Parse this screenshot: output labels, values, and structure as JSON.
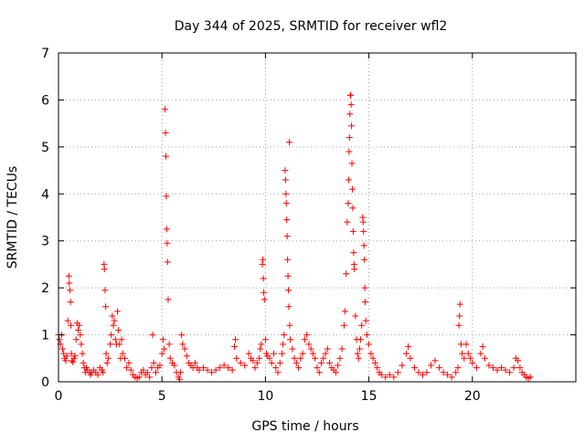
{
  "chart_data": {
    "type": "scatter",
    "title": "Day 344 of 2025, SRMTID for receiver wfl2",
    "xlabel": "GPS time / hours",
    "ylabel": "SRMTID / TECUs",
    "xlim": [
      0,
      25
    ],
    "ylim": [
      0,
      7
    ],
    "xticks": [
      0,
      5,
      10,
      15,
      20
    ],
    "yticks": [
      0,
      1,
      2,
      3,
      4,
      5,
      6,
      7
    ],
    "grid": true,
    "marker": "+",
    "color": "#ff0000",
    "series": [
      {
        "name": "SRMTID",
        "points": [
          [
            0.0,
            1.0
          ],
          [
            0.05,
            0.9
          ],
          [
            0.1,
            0.8
          ],
          [
            0.15,
            1.0
          ],
          [
            0.2,
            0.7
          ],
          [
            0.25,
            0.6
          ],
          [
            0.3,
            0.5
          ],
          [
            0.35,
            0.45
          ],
          [
            0.4,
            0.55
          ],
          [
            0.45,
            1.3
          ],
          [
            0.5,
            2.25
          ],
          [
            0.52,
            2.1
          ],
          [
            0.55,
            1.95
          ],
          [
            0.58,
            1.7
          ],
          [
            0.6,
            1.2
          ],
          [
            0.62,
            0.6
          ],
          [
            0.65,
            0.45
          ],
          [
            0.7,
            0.42
          ],
          [
            0.75,
            0.5
          ],
          [
            0.8,
            0.55
          ],
          [
            0.85,
            0.9
          ],
          [
            0.9,
            1.25
          ],
          [
            0.95,
            1.1
          ],
          [
            1.0,
            1.2
          ],
          [
            1.05,
            1.0
          ],
          [
            1.1,
            0.8
          ],
          [
            1.15,
            0.6
          ],
          [
            1.2,
            0.4
          ],
          [
            1.25,
            0.3
          ],
          [
            1.3,
            0.2
          ],
          [
            1.35,
            0.3
          ],
          [
            1.4,
            0.25
          ],
          [
            1.5,
            0.2
          ],
          [
            1.55,
            0.15
          ],
          [
            1.6,
            0.2
          ],
          [
            1.7,
            0.25
          ],
          [
            1.8,
            0.2
          ],
          [
            1.9,
            0.15
          ],
          [
            2.0,
            0.3
          ],
          [
            2.1,
            0.25
          ],
          [
            2.15,
            0.2
          ],
          [
            2.2,
            2.5
          ],
          [
            2.22,
            2.4
          ],
          [
            2.25,
            1.95
          ],
          [
            2.28,
            1.6
          ],
          [
            2.3,
            0.6
          ],
          [
            2.35,
            0.4
          ],
          [
            2.4,
            0.5
          ],
          [
            2.5,
            0.8
          ],
          [
            2.55,
            1.0
          ],
          [
            2.6,
            1.4
          ],
          [
            2.65,
            1.2
          ],
          [
            2.7,
            1.3
          ],
          [
            2.75,
            0.9
          ],
          [
            2.8,
            0.8
          ],
          [
            2.85,
            1.5
          ],
          [
            2.9,
            1.1
          ],
          [
            2.95,
            0.8
          ],
          [
            3.0,
            0.5
          ],
          [
            3.05,
            0.9
          ],
          [
            3.1,
            0.6
          ],
          [
            3.2,
            0.5
          ],
          [
            3.3,
            0.3
          ],
          [
            3.4,
            0.4
          ],
          [
            3.5,
            0.25
          ],
          [
            3.6,
            0.15
          ],
          [
            3.7,
            0.1
          ],
          [
            3.8,
            0.08
          ],
          [
            3.9,
            0.1
          ],
          [
            4.0,
            0.2
          ],
          [
            4.1,
            0.25
          ],
          [
            4.2,
            0.15
          ],
          [
            4.3,
            0.2
          ],
          [
            4.4,
            0.1
          ],
          [
            4.5,
            0.3
          ],
          [
            4.55,
            1.0
          ],
          [
            4.6,
            0.4
          ],
          [
            4.7,
            0.2
          ],
          [
            4.8,
            0.3
          ],
          [
            4.9,
            0.35
          ],
          [
            5.0,
            0.6
          ],
          [
            5.05,
            0.9
          ],
          [
            5.1,
            0.7
          ],
          [
            5.15,
            5.8
          ],
          [
            5.17,
            5.3
          ],
          [
            5.19,
            4.8
          ],
          [
            5.21,
            3.95
          ],
          [
            5.23,
            3.25
          ],
          [
            5.25,
            2.95
          ],
          [
            5.27,
            2.55
          ],
          [
            5.3,
            1.75
          ],
          [
            5.35,
            0.8
          ],
          [
            5.4,
            0.5
          ],
          [
            5.5,
            0.4
          ],
          [
            5.6,
            0.35
          ],
          [
            5.7,
            0.2
          ],
          [
            5.8,
            0.1
          ],
          [
            5.85,
            0.05
          ],
          [
            5.9,
            0.2
          ],
          [
            5.95,
            1.0
          ],
          [
            6.0,
            0.8
          ],
          [
            6.1,
            0.7
          ],
          [
            6.2,
            0.55
          ],
          [
            6.3,
            0.4
          ],
          [
            6.4,
            0.35
          ],
          [
            6.5,
            0.3
          ],
          [
            6.6,
            0.4
          ],
          [
            6.7,
            0.3
          ],
          [
            6.8,
            0.25
          ],
          [
            7.0,
            0.3
          ],
          [
            7.2,
            0.25
          ],
          [
            7.4,
            0.2
          ],
          [
            7.6,
            0.25
          ],
          [
            7.8,
            0.3
          ],
          [
            8.0,
            0.35
          ],
          [
            8.2,
            0.3
          ],
          [
            8.4,
            0.25
          ],
          [
            8.5,
            0.75
          ],
          [
            8.55,
            0.9
          ],
          [
            8.6,
            0.5
          ],
          [
            8.8,
            0.4
          ],
          [
            9.0,
            0.35
          ],
          [
            9.2,
            0.6
          ],
          [
            9.3,
            0.5
          ],
          [
            9.4,
            0.45
          ],
          [
            9.5,
            0.3
          ],
          [
            9.6,
            0.4
          ],
          [
            9.7,
            0.5
          ],
          [
            9.75,
            0.7
          ],
          [
            9.8,
            0.8
          ],
          [
            9.85,
            2.5
          ],
          [
            9.88,
            2.6
          ],
          [
            9.9,
            2.2
          ],
          [
            9.92,
            1.9
          ],
          [
            9.95,
            1.75
          ],
          [
            10.0,
            0.9
          ],
          [
            10.05,
            0.6
          ],
          [
            10.1,
            0.55
          ],
          [
            10.2,
            0.5
          ],
          [
            10.3,
            0.4
          ],
          [
            10.4,
            0.6
          ],
          [
            10.5,
            0.3
          ],
          [
            10.6,
            0.2
          ],
          [
            10.7,
            0.4
          ],
          [
            10.8,
            0.6
          ],
          [
            10.85,
            0.8
          ],
          [
            10.9,
            1.0
          ],
          [
            10.95,
            4.5
          ],
          [
            10.97,
            4.3
          ],
          [
            10.99,
            4.0
          ],
          [
            11.01,
            3.8
          ],
          [
            11.03,
            3.45
          ],
          [
            11.05,
            3.1
          ],
          [
            11.07,
            2.6
          ],
          [
            11.09,
            2.25
          ],
          [
            11.11,
            1.95
          ],
          [
            11.13,
            1.6
          ],
          [
            11.15,
            5.1
          ],
          [
            11.17,
            1.2
          ],
          [
            11.2,
            0.9
          ],
          [
            11.3,
            0.7
          ],
          [
            11.4,
            0.5
          ],
          [
            11.5,
            0.4
          ],
          [
            11.6,
            0.3
          ],
          [
            11.7,
            0.5
          ],
          [
            11.8,
            0.6
          ],
          [
            11.9,
            0.9
          ],
          [
            12.0,
            1.0
          ],
          [
            12.1,
            0.8
          ],
          [
            12.2,
            0.7
          ],
          [
            12.3,
            0.6
          ],
          [
            12.4,
            0.5
          ],
          [
            12.5,
            0.3
          ],
          [
            12.6,
            0.2
          ],
          [
            12.7,
            0.4
          ],
          [
            12.8,
            0.5
          ],
          [
            12.9,
            0.6
          ],
          [
            13.0,
            0.7
          ],
          [
            13.1,
            0.4
          ],
          [
            13.2,
            0.3
          ],
          [
            13.3,
            0.25
          ],
          [
            13.4,
            0.2
          ],
          [
            13.5,
            0.35
          ],
          [
            13.6,
            0.5
          ],
          [
            13.7,
            0.7
          ],
          [
            13.8,
            1.2
          ],
          [
            13.85,
            1.5
          ],
          [
            13.9,
            2.3
          ],
          [
            13.95,
            3.4
          ],
          [
            14.0,
            3.8
          ],
          [
            14.02,
            4.3
          ],
          [
            14.04,
            4.9
          ],
          [
            14.06,
            5.2
          ],
          [
            14.08,
            5.7
          ],
          [
            14.1,
            6.1
          ],
          [
            14.12,
            6.1
          ],
          [
            14.14,
            5.9
          ],
          [
            14.16,
            5.45
          ],
          [
            14.18,
            4.65
          ],
          [
            14.2,
            4.1
          ],
          [
            14.22,
            3.7
          ],
          [
            14.24,
            3.2
          ],
          [
            14.26,
            2.75
          ],
          [
            14.28,
            2.5
          ],
          [
            14.3,
            2.4
          ],
          [
            14.35,
            1.4
          ],
          [
            14.4,
            0.9
          ],
          [
            14.45,
            0.6
          ],
          [
            14.5,
            0.5
          ],
          [
            14.55,
            0.7
          ],
          [
            14.6,
            0.9
          ],
          [
            14.65,
            1.2
          ],
          [
            14.7,
            3.5
          ],
          [
            14.72,
            3.4
          ],
          [
            14.74,
            3.2
          ],
          [
            14.76,
            2.9
          ],
          [
            14.78,
            2.6
          ],
          [
            14.8,
            2.0
          ],
          [
            14.82,
            1.7
          ],
          [
            14.85,
            1.3
          ],
          [
            14.9,
            1.0
          ],
          [
            15.0,
            0.8
          ],
          [
            15.1,
            0.6
          ],
          [
            15.2,
            0.5
          ],
          [
            15.3,
            0.4
          ],
          [
            15.4,
            0.3
          ],
          [
            15.5,
            0.2
          ],
          [
            15.6,
            0.15
          ],
          [
            15.8,
            0.1
          ],
          [
            16.0,
            0.15
          ],
          [
            16.2,
            0.1
          ],
          [
            16.4,
            0.2
          ],
          [
            16.6,
            0.35
          ],
          [
            16.8,
            0.6
          ],
          [
            16.9,
            0.75
          ],
          [
            17.0,
            0.5
          ],
          [
            17.2,
            0.3
          ],
          [
            17.4,
            0.2
          ],
          [
            17.6,
            0.15
          ],
          [
            17.8,
            0.2
          ],
          [
            18.0,
            0.35
          ],
          [
            18.2,
            0.45
          ],
          [
            18.4,
            0.3
          ],
          [
            18.6,
            0.2
          ],
          [
            18.8,
            0.15
          ],
          [
            19.0,
            0.1
          ],
          [
            19.2,
            0.2
          ],
          [
            19.3,
            0.3
          ],
          [
            19.35,
            1.2
          ],
          [
            19.38,
            1.4
          ],
          [
            19.4,
            1.65
          ],
          [
            19.45,
            0.8
          ],
          [
            19.5,
            0.6
          ],
          [
            19.6,
            0.5
          ],
          [
            19.7,
            0.8
          ],
          [
            19.8,
            0.6
          ],
          [
            19.9,
            0.5
          ],
          [
            20.0,
            0.4
          ],
          [
            20.2,
            0.3
          ],
          [
            20.4,
            0.6
          ],
          [
            20.5,
            0.75
          ],
          [
            20.6,
            0.5
          ],
          [
            20.8,
            0.35
          ],
          [
            21.0,
            0.3
          ],
          [
            21.2,
            0.25
          ],
          [
            21.4,
            0.3
          ],
          [
            21.6,
            0.25
          ],
          [
            21.8,
            0.2
          ],
          [
            22.0,
            0.3
          ],
          [
            22.1,
            0.5
          ],
          [
            22.2,
            0.45
          ],
          [
            22.3,
            0.3
          ],
          [
            22.4,
            0.2
          ],
          [
            22.5,
            0.15
          ],
          [
            22.6,
            0.1
          ],
          [
            22.7,
            0.08
          ],
          [
            22.8,
            0.1
          ]
        ]
      }
    ]
  }
}
